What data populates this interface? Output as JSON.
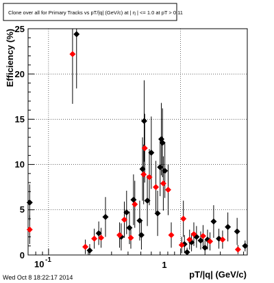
{
  "chart_data": {
    "type": "scatter",
    "title": "Clone over all for Primary Tracks vs pT/|q| (GeV/c) at | η | <= 1.0 at pT > 0.11",
    "xlabel": "pT/|q| (GeV/c)",
    "ylabel": "Efficiency (%)",
    "xscale": "log",
    "xlim": [
      0.07,
      3.2
    ],
    "ylim": [
      0,
      25
    ],
    "grid": true,
    "x_tick_labels": [
      "10",
      "-1",
      "1"
    ],
    "y_tick_labels": [
      "0",
      "5",
      "10",
      "15",
      "20",
      "25"
    ],
    "series": [
      {
        "marker": "diamond",
        "color": "#000000",
        "points": [
          {
            "x": 0.072,
            "y": 5.8,
            "err": 2.0
          },
          {
            "x": 0.163,
            "y": 24.4,
            "err": 6.0
          },
          {
            "x": 0.205,
            "y": 0.5,
            "err": 0.7
          },
          {
            "x": 0.24,
            "y": 2.4,
            "err": 1.3
          },
          {
            "x": 0.27,
            "y": 4.2,
            "err": 2.2
          },
          {
            "x": 0.355,
            "y": 2.0,
            "err": 1.5
          },
          {
            "x": 0.39,
            "y": 4.7,
            "err": 2.4
          },
          {
            "x": 0.41,
            "y": 3.0,
            "err": 1.8
          },
          {
            "x": 0.44,
            "y": 6.1,
            "err": 2.8
          },
          {
            "x": 0.49,
            "y": 3.8,
            "err": 2.2
          },
          {
            "x": 0.505,
            "y": 2.2,
            "err": 1.6
          },
          {
            "x": 0.515,
            "y": 9.5,
            "err": 3.5
          },
          {
            "x": 0.53,
            "y": 14.8,
            "err": 4.5
          },
          {
            "x": 0.56,
            "y": 6.0,
            "err": 2.8
          },
          {
            "x": 0.6,
            "y": 11.3,
            "err": 4.0
          },
          {
            "x": 0.67,
            "y": 4.6,
            "err": 2.5
          },
          {
            "x": 0.7,
            "y": 9.7,
            "err": 3.2
          },
          {
            "x": 0.715,
            "y": 12.8,
            "err": 4.0
          },
          {
            "x": 0.73,
            "y": 12.4,
            "err": 3.8
          },
          {
            "x": 0.76,
            "y": 9.3,
            "err": 3.0
          },
          {
            "x": 1.07,
            "y": 1.2,
            "err": 1.0
          },
          {
            "x": 1.12,
            "y": 0.3,
            "err": 0.5
          },
          {
            "x": 1.21,
            "y": 1.4,
            "err": 1.0
          },
          {
            "x": 1.32,
            "y": 2.0,
            "err": 1.2
          },
          {
            "x": 1.42,
            "y": 1.6,
            "err": 1.0
          },
          {
            "x": 1.53,
            "y": 0.8,
            "err": 0.8
          },
          {
            "x": 1.6,
            "y": 1.7,
            "err": 1.1
          },
          {
            "x": 1.78,
            "y": 3.7,
            "err": 1.8
          },
          {
            "x": 1.95,
            "y": 1.8,
            "err": 1.1
          },
          {
            "x": 2.28,
            "y": 3.1,
            "err": 1.6
          },
          {
            "x": 2.68,
            "y": 2.6,
            "err": 1.5
          },
          {
            "x": 3.08,
            "y": 1.0,
            "err": 0.6
          }
        ]
      },
      {
        "marker": "diamond",
        "color": "#ff0000",
        "points": [
          {
            "x": 0.072,
            "y": 2.8,
            "err": 1.6
          },
          {
            "x": 0.152,
            "y": 22.2,
            "err": 5.5
          },
          {
            "x": 0.19,
            "y": 0.9,
            "err": 0.8
          },
          {
            "x": 0.222,
            "y": 1.8,
            "err": 1.1
          },
          {
            "x": 0.25,
            "y": 1.9,
            "err": 1.1
          },
          {
            "x": 0.345,
            "y": 2.2,
            "err": 1.4
          },
          {
            "x": 0.375,
            "y": 3.9,
            "err": 2.0
          },
          {
            "x": 0.42,
            "y": 1.9,
            "err": 1.2
          },
          {
            "x": 0.45,
            "y": 5.6,
            "err": 2.6
          },
          {
            "x": 0.525,
            "y": 8.9,
            "err": 3.3
          },
          {
            "x": 0.535,
            "y": 11.8,
            "err": 3.8
          },
          {
            "x": 0.58,
            "y": 8.6,
            "err": 3.1
          },
          {
            "x": 0.65,
            "y": 7.5,
            "err": 2.9
          },
          {
            "x": 0.74,
            "y": 7.9,
            "err": 3.0
          },
          {
            "x": 0.805,
            "y": 7.2,
            "err": 2.8
          },
          {
            "x": 0.85,
            "y": 2.2,
            "err": 1.4
          },
          {
            "x": 1.02,
            "y": 1.1,
            "err": 0.9
          },
          {
            "x": 1.05,
            "y": 4.0,
            "err": 2.0
          },
          {
            "x": 1.17,
            "y": 1.7,
            "err": 1.1
          },
          {
            "x": 1.26,
            "y": 2.3,
            "err": 1.3
          },
          {
            "x": 1.48,
            "y": 2.1,
            "err": 1.2
          },
          {
            "x": 1.67,
            "y": 1.5,
            "err": 1.0
          },
          {
            "x": 2.08,
            "y": 1.7,
            "err": 1.0
          },
          {
            "x": 2.72,
            "y": 0.6,
            "err": 0.5
          }
        ]
      }
    ]
  },
  "footer": {
    "timestamp": "Wed Oct  8 18:22:17 2014"
  }
}
